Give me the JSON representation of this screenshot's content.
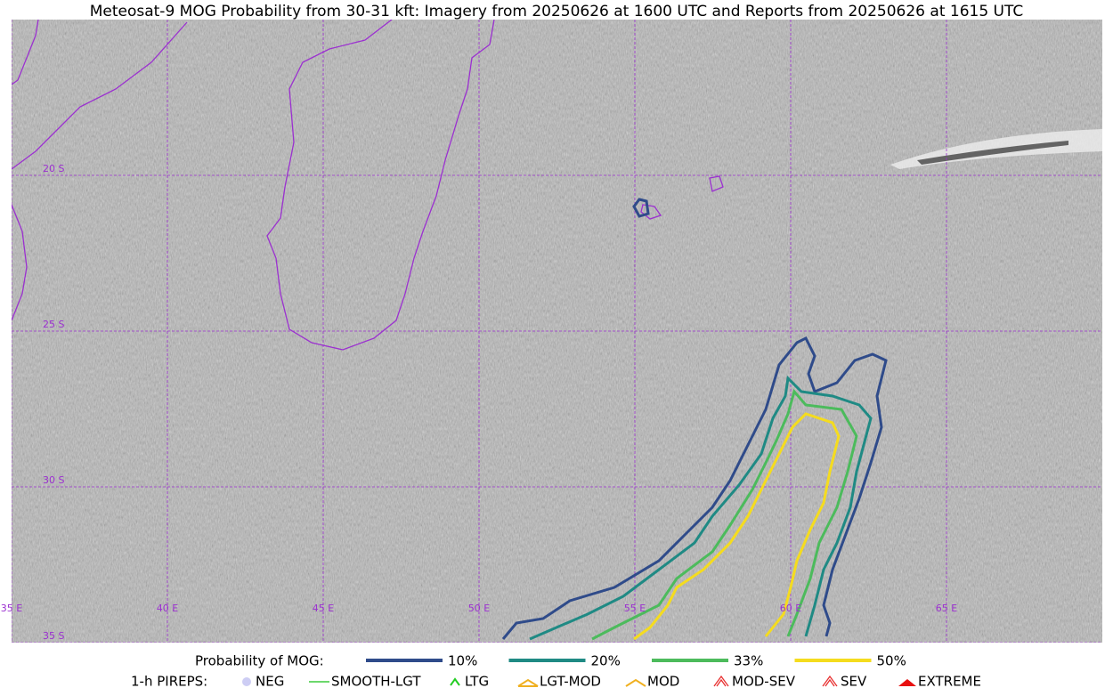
{
  "title": "Meteosat-9 MOG Probability from 30-31 kft: Imagery from 20250626 at 1600 UTC and Reports from 20250626 at 1615 UTC",
  "map": {
    "lon_labels": [
      "35 E",
      "40 E",
      "45 E",
      "50 E",
      "55 E",
      "60 E",
      "65 E"
    ],
    "lat_labels": [
      "20 S",
      "25 S",
      "30 S",
      "35 S"
    ],
    "grid_color": "#9b30d0"
  },
  "legend": {
    "probability": {
      "title": "Probability of MOG:",
      "levels": [
        {
          "label": "10%",
          "color": "#2f4b8a"
        },
        {
          "label": "20%",
          "color": "#1f8a84"
        },
        {
          "label": "33%",
          "color": "#4cbb5c"
        },
        {
          "label": "50%",
          "color": "#f5dc1e"
        }
      ]
    },
    "pireps": {
      "title": "1-h PIREPS:",
      "items": [
        {
          "label": "NEG",
          "color": "#b8b8f0"
        },
        {
          "label": "SMOOTH-LGT",
          "color": "#3ccc3c"
        },
        {
          "label": "LTG",
          "color": "#22cc22"
        },
        {
          "label": "LGT-MOD",
          "color": "#f0b020"
        },
        {
          "label": "MOD",
          "color": "#f0b020"
        },
        {
          "label": "MOD-SEV",
          "color": "#e83030"
        },
        {
          "label": "SEV",
          "color": "#e83030"
        },
        {
          "label": "EXTREME",
          "color": "#e81010"
        }
      ]
    }
  }
}
